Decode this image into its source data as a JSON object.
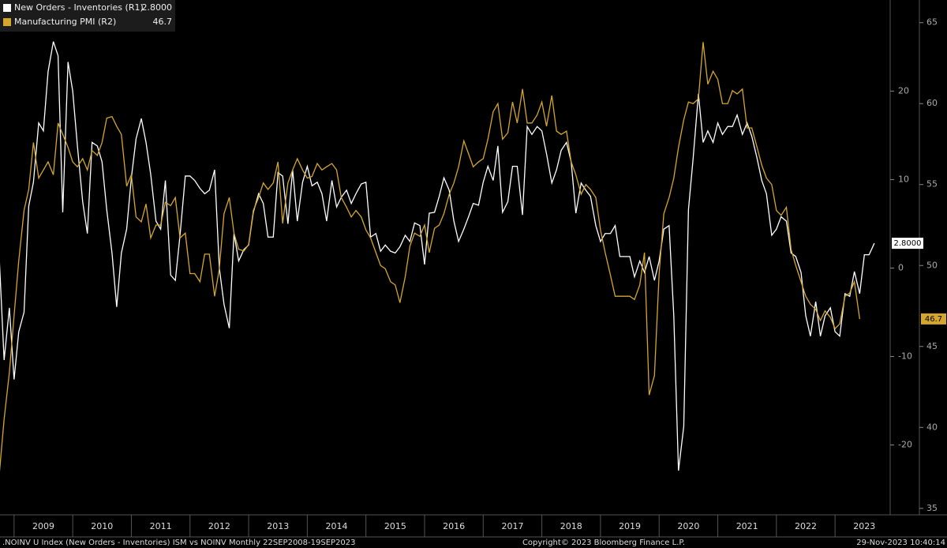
{
  "chart_data": {
    "type": "line",
    "x": [
      2008.75,
      2008.83,
      2008.92,
      2009,
      2009.08,
      2009.17,
      2009.25,
      2009.33,
      2009.42,
      2009.5,
      2009.58,
      2009.67,
      2009.75,
      2009.83,
      2009.92,
      2010,
      2010.08,
      2010.17,
      2010.25,
      2010.33,
      2010.42,
      2010.5,
      2010.58,
      2010.67,
      2010.75,
      2010.83,
      2010.92,
      2011,
      2011.08,
      2011.17,
      2011.25,
      2011.33,
      2011.42,
      2011.5,
      2011.58,
      2011.67,
      2011.75,
      2011.83,
      2011.92,
      2012,
      2012.08,
      2012.17,
      2012.25,
      2012.33,
      2012.42,
      2012.5,
      2012.58,
      2012.67,
      2012.75,
      2012.83,
      2012.92,
      2013,
      2013.08,
      2013.17,
      2013.25,
      2013.33,
      2013.42,
      2013.5,
      2013.58,
      2013.67,
      2013.75,
      2013.83,
      2013.92,
      2014,
      2014.08,
      2014.17,
      2014.25,
      2014.33,
      2014.42,
      2014.5,
      2014.58,
      2014.67,
      2014.75,
      2014.83,
      2014.92,
      2015,
      2015.08,
      2015.17,
      2015.25,
      2015.33,
      2015.42,
      2015.5,
      2015.58,
      2015.67,
      2015.75,
      2015.83,
      2015.92,
      2016,
      2016.08,
      2016.17,
      2016.25,
      2016.33,
      2016.42,
      2016.5,
      2016.58,
      2016.67,
      2016.75,
      2016.83,
      2016.92,
      2017,
      2017.08,
      2017.17,
      2017.25,
      2017.33,
      2017.42,
      2017.5,
      2017.58,
      2017.67,
      2017.75,
      2017.83,
      2017.92,
      2018,
      2018.08,
      2018.17,
      2018.25,
      2018.33,
      2018.42,
      2018.5,
      2018.58,
      2018.67,
      2018.75,
      2018.83,
      2018.92,
      2019,
      2019.08,
      2019.17,
      2019.25,
      2019.33,
      2019.42,
      2019.5,
      2019.58,
      2019.67,
      2019.75,
      2019.83,
      2019.92,
      2020,
      2020.08,
      2020.17,
      2020.25,
      2020.33,
      2020.42,
      2020.5,
      2020.58,
      2020.67,
      2020.75,
      2020.83,
      2020.92,
      2021,
      2021.08,
      2021.17,
      2021.25,
      2021.33,
      2021.42,
      2021.5,
      2021.58,
      2021.67,
      2021.75,
      2021.83,
      2021.92,
      2022,
      2022.08,
      2022.17,
      2022.25,
      2022.33,
      2022.42,
      2022.5,
      2022.58,
      2022.67,
      2022.75,
      2022.83,
      2022.92,
      2023,
      2023.08,
      2023.17,
      2023.25,
      2023.33,
      2023.42,
      2023.5,
      2023.58,
      2023.67
    ],
    "series": [
      {
        "name": "New Orders - Inventories (R1)",
        "color": "#ffffff",
        "values": [
          0.8,
          -10.4,
          -4.5,
          -12.6,
          -7.2,
          -5,
          7,
          9.7,
          16.4,
          15.5,
          22.2,
          25.6,
          24,
          6.3,
          23.3,
          20,
          13.8,
          7.5,
          3.9,
          14.2,
          13.8,
          12,
          6.6,
          1.7,
          -4.4,
          1.7,
          4.4,
          10.2,
          14.6,
          16.9,
          14.2,
          10.6,
          5.3,
          4.4,
          9.9,
          -0.8,
          -1.4,
          3.7,
          10.4,
          10.4,
          9.9,
          9,
          8.4,
          8.8,
          11.1,
          0,
          -4.1,
          -6.8,
          3.9,
          0.8,
          2.1,
          2.6,
          6.3,
          8.4,
          7.3,
          3.5,
          3.5,
          10.8,
          10.4,
          5,
          11.1,
          5.3,
          9.7,
          11.5,
          9.3,
          9.7,
          8.4,
          5.3,
          9.9,
          6.9,
          8,
          8.8,
          7.3,
          8.4,
          9.5,
          9.7,
          3.5,
          3.9,
          1.9,
          2.6,
          1.9,
          1.7,
          2.4,
          3.7,
          3,
          5.1,
          4.8,
          0.4,
          6.2,
          6.3,
          8.1,
          10.2,
          8.8,
          5.3,
          3,
          4.4,
          5.8,
          7.3,
          7.1,
          9.7,
          11.5,
          9.9,
          13.8,
          6.3,
          7.5,
          11.5,
          11.5,
          6,
          16,
          15.1,
          16,
          15.5,
          12.9,
          9.6,
          11.1,
          13.3,
          14.2,
          12,
          6.2,
          9.6,
          8.8,
          8.1,
          4.8,
          3,
          3.9,
          3.9,
          4.8,
          1.3,
          1.3,
          1.3,
          -1,
          0.8,
          -0.5,
          1.3,
          -1.4,
          0.8,
          4.4,
          4.8,
          -5.4,
          -22.9,
          -17.9,
          6.6,
          12.4,
          19.7,
          14.2,
          15.5,
          14.2,
          16.4,
          15.1,
          16,
          16,
          17.3,
          15.1,
          16.4,
          14.9,
          12.4,
          9.9,
          8.4,
          3.7,
          4.4,
          5.8,
          5.3,
          1.7,
          1.3,
          -0.5,
          -5.4,
          -7.7,
          -3.8,
          -7.7,
          -5.4,
          -4.5,
          -7.2,
          -7.7,
          -2.9,
          -3.2,
          -0.4,
          -2.9,
          1.5,
          1.5,
          2.8
        ],
        "value_labels": [
          null,
          null,
          null,
          null,
          null,
          null,
          null,
          null,
          null,
          null,
          null,
          null,
          null,
          null,
          null,
          null,
          null,
          null,
          null,
          null,
          null,
          null,
          null,
          null,
          null,
          null,
          null,
          null,
          null,
          null,
          null,
          null,
          null,
          null,
          null,
          null,
          null,
          null,
          null,
          null,
          null,
          null,
          null,
          null,
          null,
          null,
          null,
          null,
          null,
          null,
          null,
          null,
          null,
          null,
          null,
          null,
          null,
          null,
          null,
          null,
          null,
          null,
          null,
          null,
          null,
          null,
          null,
          null,
          null,
          null,
          null,
          null,
          null,
          null,
          null,
          null,
          null,
          null,
          null,
          null,
          null,
          null,
          null,
          null,
          null,
          null,
          null,
          null,
          null,
          null,
          null,
          null,
          null,
          null,
          null,
          null,
          null,
          null,
          null,
          null,
          null,
          null,
          null,
          null,
          null,
          null,
          null,
          null,
          null,
          null,
          null,
          null,
          null,
          null,
          null,
          null,
          null,
          null,
          null,
          null,
          null,
          null,
          null,
          null,
          null,
          null,
          null,
          null,
          null,
          null,
          null,
          null,
          null,
          null,
          null,
          null,
          null,
          null,
          null,
          null,
          null,
          null,
          null,
          null,
          null,
          null,
          null,
          null,
          null,
          null,
          null,
          null,
          null,
          null,
          null,
          null,
          null,
          null,
          null,
          null,
          null,
          null,
          null,
          null,
          null,
          null,
          null,
          null,
          null,
          null,
          null,
          null,
          null,
          null,
          null,
          null,
          null,
          null,
          null,
          "2.8000"
        ]
      },
      {
        "name": "Manufacturing PMI (R2)",
        "color": "#d4a72c",
        "axis": "y2",
        "values": [
          37.2,
          40.5,
          43.4,
          46.9,
          50.3,
          53.4,
          54.7,
          57.6,
          55.4,
          55.9,
          56.4,
          55.6,
          58.8,
          58.1,
          57.3,
          56.4,
          56.1,
          56.6,
          55.9,
          57.1,
          56.8,
          57.6,
          59.1,
          59.2,
          58.6,
          58.1,
          54.9,
          55.6,
          53,
          52.7,
          53.8,
          51.7,
          52.5,
          52.5,
          53.9,
          53.7,
          54.2,
          51.7,
          52,
          49.5,
          49.5,
          49,
          50.7,
          50.7,
          48.1,
          49.8,
          53.2,
          54.2,
          52,
          51,
          50.9,
          51.3,
          53.4,
          54.2,
          55.1,
          54.7,
          55.1,
          56.4,
          52.6,
          55.1,
          55.9,
          56.6,
          55.9,
          55.4,
          55.5,
          56.3,
          55.9,
          56.1,
          56.3,
          55.9,
          54.2,
          53.6,
          53,
          53.4,
          53,
          52.2,
          51.7,
          50.8,
          50,
          49.8,
          49,
          48.8,
          47.7,
          49.3,
          51.2,
          52,
          51.8,
          52.5,
          50.8,
          52.3,
          52.5,
          53.2,
          54.4,
          55.1,
          56.1,
          57.7,
          56.9,
          56.1,
          56.4,
          56.6,
          57.8,
          59.5,
          60,
          57.8,
          58.2,
          60.1,
          58.8,
          60.9,
          58.8,
          58.8,
          59.3,
          60.1,
          58.6,
          60.5,
          58.3,
          58.1,
          58.3,
          56.4,
          55.6,
          54.4,
          55,
          54.7,
          54.2,
          52.2,
          50.8,
          49.4,
          48.1,
          48.1,
          48.1,
          48.1,
          47.9,
          48.8,
          50.8,
          42,
          43.2,
          49.5,
          53.2,
          54.2,
          55.4,
          57.3,
          59,
          60.1,
          60,
          60.3,
          63.8,
          61.2,
          62,
          61.5,
          60,
          60,
          60.8,
          60.6,
          60.9,
          58.5,
          58.5,
          57.3,
          56.2,
          55.4,
          55,
          53.4,
          53.1,
          53.6,
          51,
          50,
          49,
          48.1,
          47.6,
          47.3,
          46.6,
          47.2,
          46.8,
          46.1,
          46.4,
          48.1,
          48.3,
          49,
          46.7,
          null,
          null,
          null
        ]
      }
    ],
    "xlim": [
      2008.76,
      2023.94
    ],
    "xticks": [
      2009,
      2010,
      2011,
      2012,
      2013,
      2014,
      2015,
      2016,
      2017,
      2018,
      2019,
      2020,
      2021,
      2022,
      2023
    ],
    "ylim": [
      -27.9,
      30.3
    ],
    "yticks": [
      -20,
      -10,
      0,
      10,
      20
    ],
    "y2lim": [
      34.6,
      66.4
    ],
    "y2ticks": [
      35,
      40,
      45,
      50,
      55,
      60,
      65
    ],
    "legend": "upper left",
    "footer_left": ".NOINV U Index (New Orders - Inventories) ISM vs NOINV  Monthly 22SEP2008-19SEP2023",
    "footer_center": "Copyright© 2023 Bloomberg Finance L.P.",
    "footer_right": "29-Nov-2023 10:40:14"
  }
}
